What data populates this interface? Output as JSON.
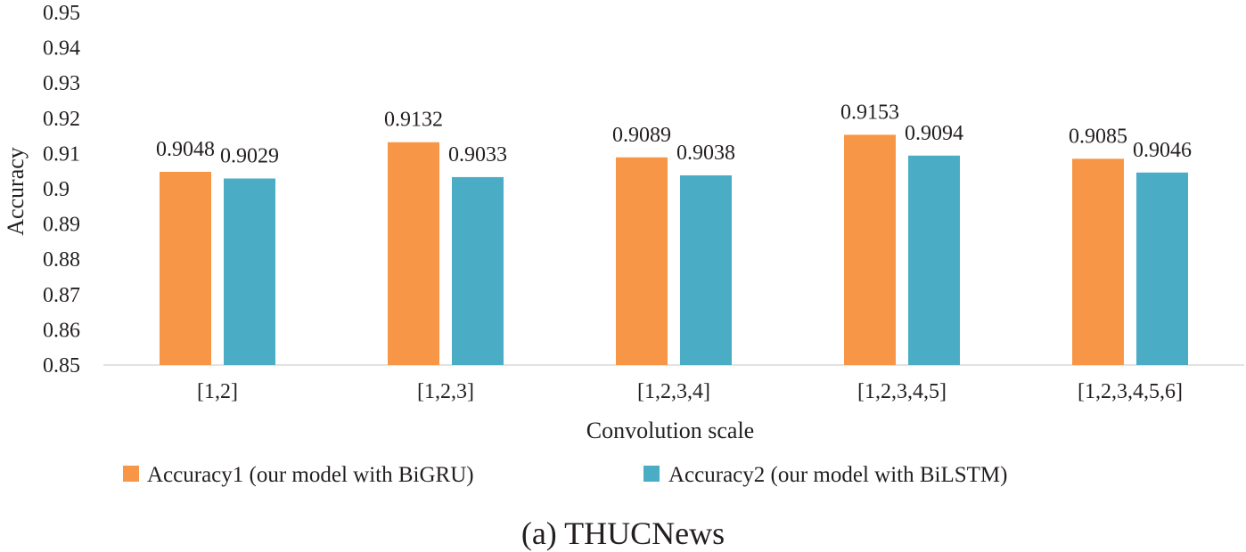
{
  "chart_data": {
    "type": "bar",
    "caption": "(a) THUCNews",
    "xlabel": "Convolution scale",
    "ylabel": "Accuracy",
    "ylim": [
      0.85,
      0.95
    ],
    "y_ticks": [
      "0.85",
      "0.86",
      "0.87",
      "0.88",
      "0.89",
      "0.9",
      "0.91",
      "0.92",
      "0.93",
      "0.94",
      "0.95"
    ],
    "categories": [
      "[1,2]",
      "[1,2,3]",
      "[1,2,3,4]",
      "[1,2,3,4,5]",
      "[1,2,3,4,5,6]"
    ],
    "series": [
      {
        "name": "Accuracy1 (our model with BiGRU)",
        "color": "#f79646",
        "values": [
          0.9048,
          0.9132,
          0.9089,
          0.9153,
          0.9085
        ],
        "labels": [
          "0.9048",
          "0.9132",
          "0.9089",
          "0.9153",
          "0.9085"
        ]
      },
      {
        "name": "Accuracy2 (our model with BiLSTM)",
        "color": "#4bacc6",
        "values": [
          0.9029,
          0.9033,
          0.9038,
          0.9094,
          0.9046
        ],
        "labels": [
          "0.9029",
          "0.9033",
          "0.9038",
          "0.9094",
          "0.9046"
        ]
      }
    ],
    "legend_position": "bottom",
    "grid": false
  }
}
